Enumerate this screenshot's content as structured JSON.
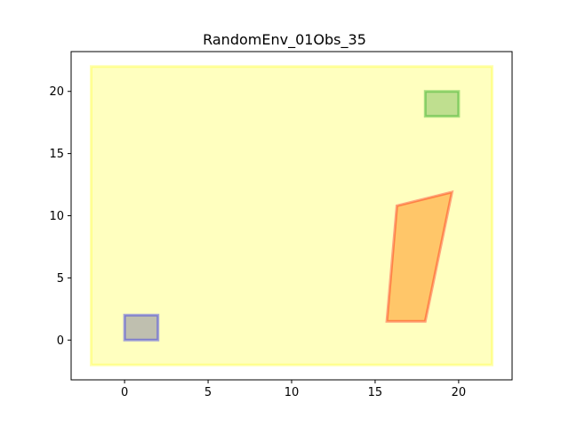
{
  "chart_data": {
    "type": "scatter",
    "title": "RandomEnv_01Obs_35",
    "xlabel": "",
    "ylabel": "",
    "xlim": [
      -3.2,
      23.2
    ],
    "ylim": [
      -3.2,
      23.2
    ],
    "xticks": [
      0,
      5,
      10,
      15,
      20
    ],
    "yticks": [
      0,
      5,
      10,
      15,
      20
    ],
    "grid": false,
    "polygons": [
      {
        "role": "environment-boundary",
        "points": [
          [
            -2,
            -2
          ],
          [
            22,
            -2
          ],
          [
            22,
            22
          ],
          [
            -2,
            22
          ]
        ],
        "fill": "#ffff00",
        "fill_opacity": 0.25,
        "stroke": "#ffff00",
        "stroke_opacity": 0.3
      },
      {
        "role": "start-region",
        "points": [
          [
            0,
            0
          ],
          [
            2,
            0
          ],
          [
            2,
            2
          ],
          [
            0,
            2
          ]
        ],
        "fill": "#000080",
        "fill_opacity": 0.25,
        "stroke": "#0000ff",
        "stroke_opacity": 0.35
      },
      {
        "role": "goal-region",
        "points": [
          [
            18,
            18
          ],
          [
            20,
            18
          ],
          [
            20,
            20
          ],
          [
            18,
            20
          ]
        ],
        "fill": "#008000",
        "fill_opacity": 0.25,
        "stroke": "#00a000",
        "stroke_opacity": 0.35
      },
      {
        "role": "obstacle",
        "points": [
          [
            15.7,
            1.5
          ],
          [
            18.0,
            1.5
          ],
          [
            19.6,
            11.9
          ],
          [
            16.3,
            10.8
          ]
        ],
        "fill": "#ff8000",
        "fill_opacity": 0.45,
        "stroke": "#ff0000",
        "stroke_opacity": 0.35
      }
    ]
  }
}
